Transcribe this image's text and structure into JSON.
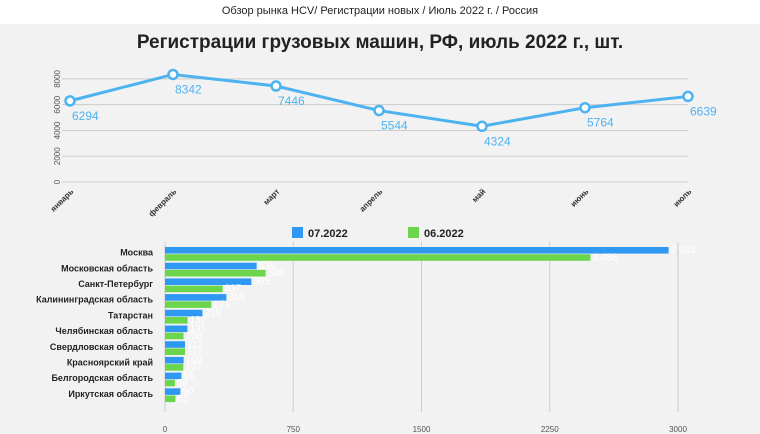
{
  "header": {
    "text": "Обзор рынка HCV/ Регистрации новых / Июль 2022 г. / Россия"
  },
  "colors": {
    "line": "#4db3f0",
    "series_blue": "#2f98f2",
    "series_green": "#6bd64b",
    "grid": "#cccccc"
  },
  "chart_data": [
    {
      "type": "line",
      "title": "Регистрации грузовых машин, РФ, июль 2022 г., шт.",
      "categories": [
        "январь",
        "февраль",
        "март",
        "апрель",
        "май",
        "июнь",
        "июль"
      ],
      "values": [
        6294,
        8342,
        7446,
        5544,
        4324,
        5764,
        6639
      ],
      "data_labels": [
        "6294",
        "8342",
        "7446",
        "5544",
        "4324",
        "5764",
        "6639"
      ],
      "yticks": [
        "0",
        "2000",
        "4000",
        "6000",
        "8000"
      ],
      "ylim": [
        0,
        9000
      ],
      "grid": true
    },
    {
      "type": "bar",
      "orientation": "horizontal",
      "categories": [
        "Москва",
        "Московская область",
        "Санкт-Петербург",
        "Калининградская область",
        "Татарстан",
        "Челябинская область",
        "Свердловская область",
        "Красноярский край",
        "Белгородская область",
        "Иркутская область"
      ],
      "series": [
        {
          "name": "07.2022",
          "values": [
            2945,
            536,
            505,
            359,
            219,
            131,
            117,
            109,
            96,
            90
          ],
          "labels": [
            "2 945",
            "536",
            "505",
            "359",
            "219",
            "131",
            "117",
            "109",
            "96",
            "90"
          ]
        },
        {
          "name": "06.2022",
          "values": [
            2488,
            588,
            337,
            271,
            132,
            108,
            117,
            107,
            58,
            61
          ],
          "labels": [
            "2 488",
            "588",
            "337",
            "271",
            "132",
            "108",
            "117",
            "107",
            "58",
            "61"
          ]
        }
      ],
      "xticks": [
        "0",
        "750",
        "1500",
        "2250",
        "3000"
      ],
      "xlim": [
        0,
        3000
      ],
      "legend": "top"
    }
  ]
}
